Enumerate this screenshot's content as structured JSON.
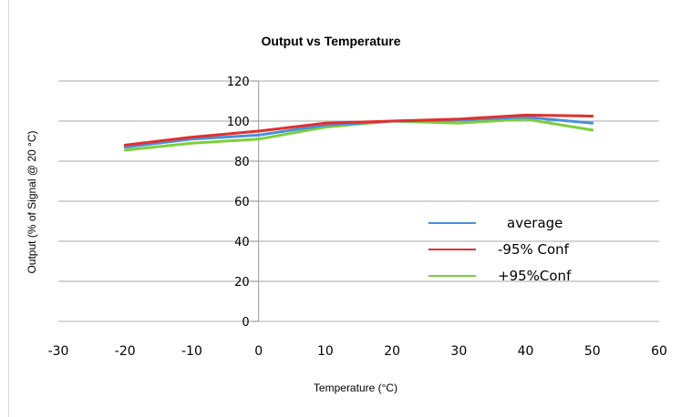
{
  "chart_data": {
    "type": "line",
    "title": "Output vs Temperature",
    "xlabel": "Temperature (°C)",
    "ylabel": "Output (% of Signal @ 20 °C)",
    "xlim": [
      -30,
      60
    ],
    "ylim": [
      0,
      120
    ],
    "xticks": [
      "-30",
      "-20",
      "-10",
      "0",
      "10",
      "20",
      "30",
      "40",
      "50",
      "60"
    ],
    "yticks": [
      "0",
      "20",
      "40",
      "60",
      "80",
      "100",
      "120"
    ],
    "grid": "horizontal",
    "legend_position": "right",
    "x": [
      -20,
      -10,
      0,
      10,
      20,
      30,
      40,
      50
    ],
    "series": [
      {
        "name": "average",
        "color": "#4a90d9",
        "values": [
          87,
          91,
          93,
          98,
          100,
          100.5,
          102,
          99
        ]
      },
      {
        "name": "-95% Conf",
        "color": "#e03030",
        "values": [
          88,
          92,
          95,
          99,
          100,
          101,
          103,
          102.5
        ]
      },
      {
        "name": "+95%Conf",
        "color": "#7ccf3a",
        "values": [
          85.5,
          89,
          91,
          97,
          100,
          99,
          101,
          95.5
        ]
      }
    ]
  }
}
